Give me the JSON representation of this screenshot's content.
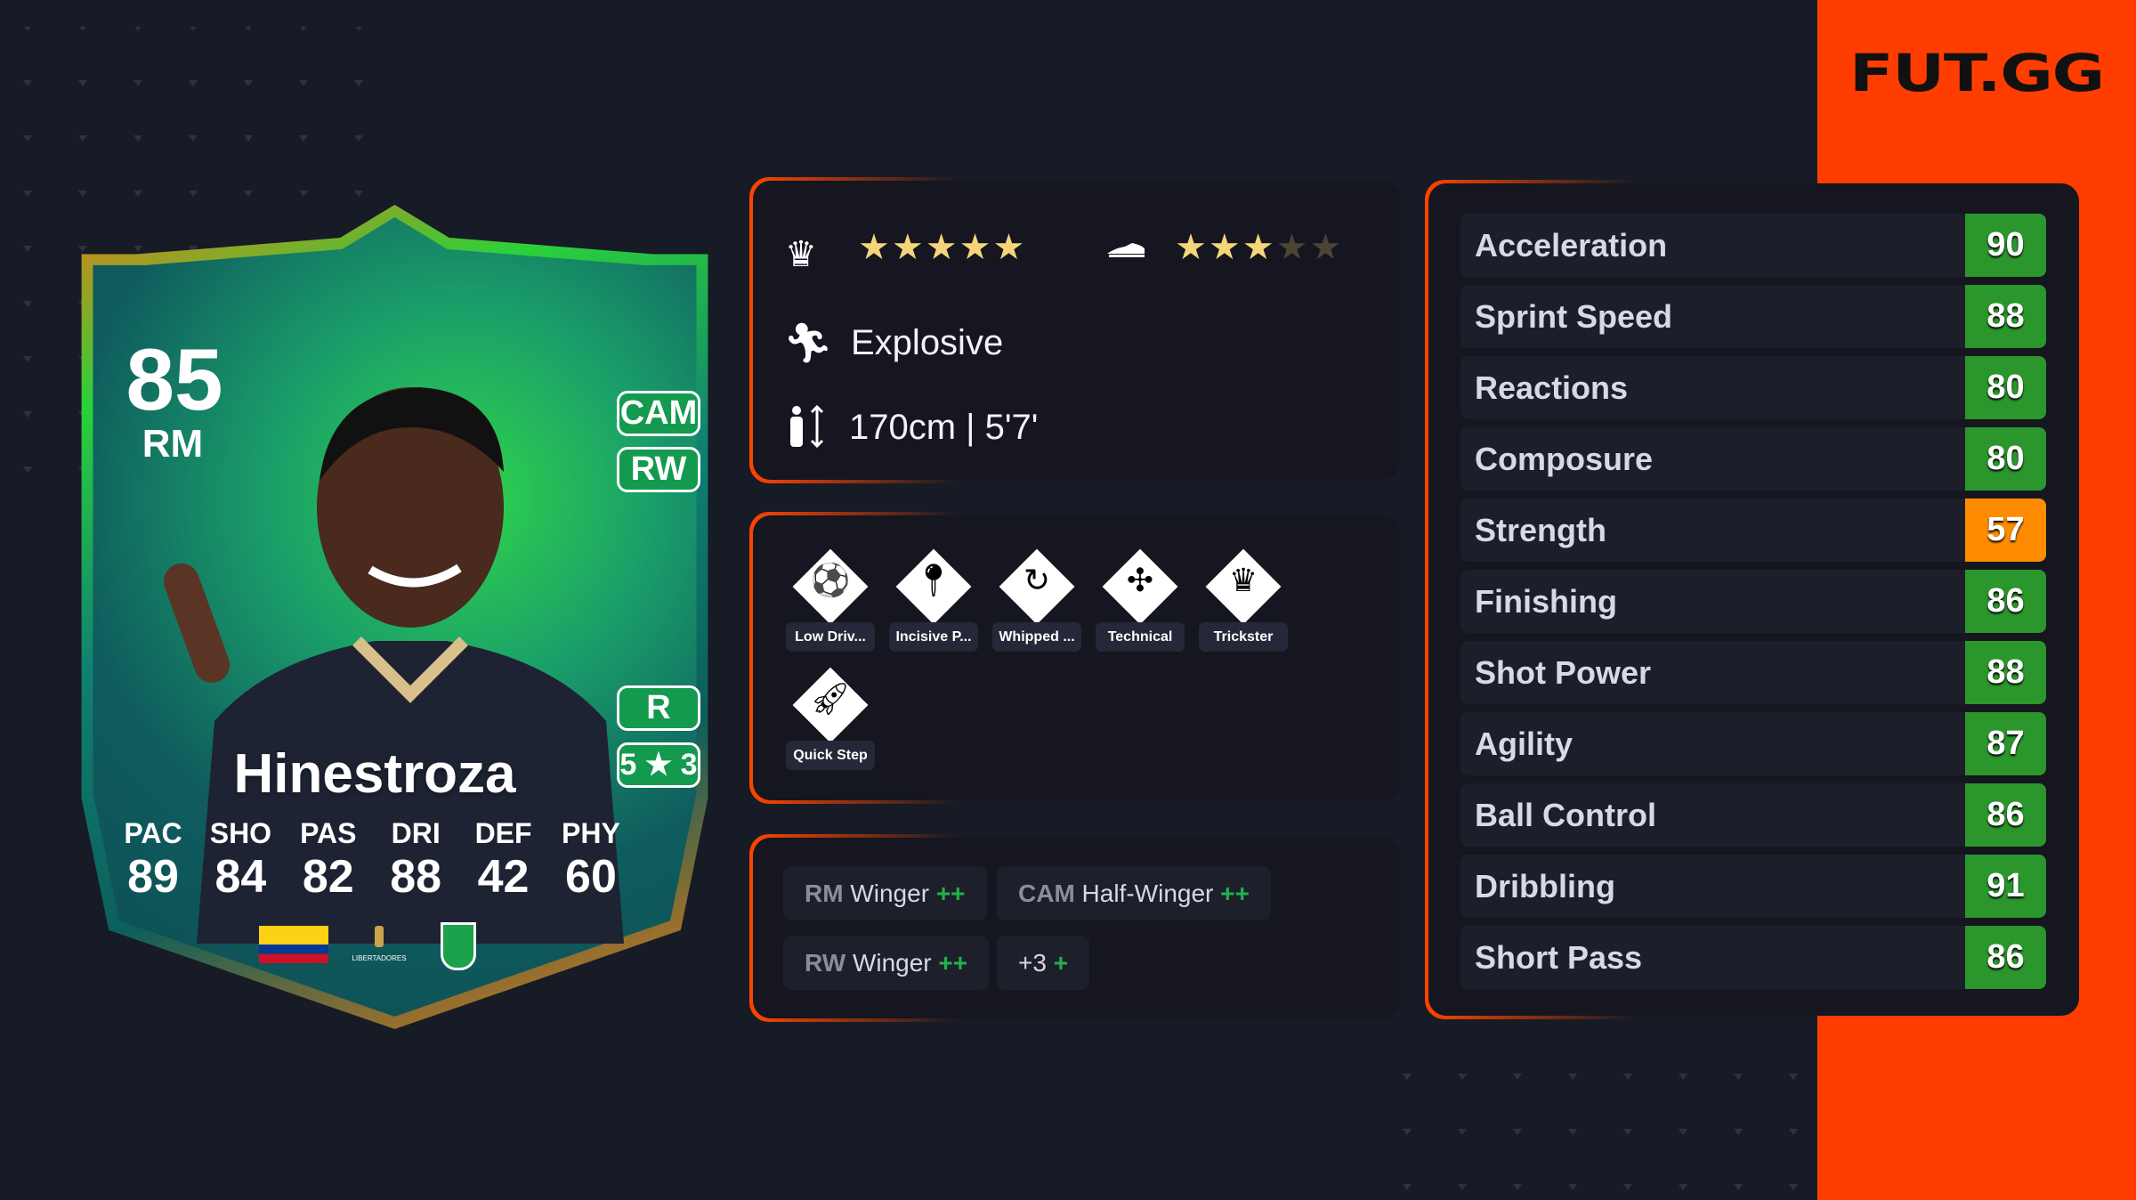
{
  "brand": {
    "logo": "FUT.GG",
    "accent": "#ff3d00"
  },
  "card": {
    "rating": "85",
    "position": "RM",
    "name": "Hinestroza",
    "alt_positions": [
      "CAM",
      "RW"
    ],
    "foot": "R",
    "skill_weak": "5 ★ 3",
    "face_stats": [
      {
        "label": "PAC",
        "value": "89"
      },
      {
        "label": "SHO",
        "value": "84"
      },
      {
        "label": "PAS",
        "value": "82"
      },
      {
        "label": "DRI",
        "value": "88"
      },
      {
        "label": "DEF",
        "value": "42"
      },
      {
        "label": "PHY",
        "value": "60"
      }
    ],
    "nation_flag": "colombia-flag",
    "league_logo": "CONMEBOL LIBERTADORES",
    "club_crest": "atletico-nacional-crest"
  },
  "info": {
    "skill_moves_icon": "jester-hat-icon",
    "skill_moves": 5,
    "weak_foot_icon": "boot-icon",
    "weak_foot": 3,
    "max_stars": 5,
    "accelerate_type": "Explosive",
    "height": "170cm | 5'7'"
  },
  "playstyles": [
    {
      "label": "Low Driv...",
      "icon": "low-driven-shot-icon"
    },
    {
      "label": "Incisive P...",
      "icon": "incisive-pass-icon"
    },
    {
      "label": "Whipped ...",
      "icon": "whipped-pass-icon"
    },
    {
      "label": "Technical",
      "icon": "technical-icon"
    },
    {
      "label": "Trickster",
      "icon": "trickster-icon"
    },
    {
      "label": "Quick Step",
      "icon": "quick-step-icon"
    }
  ],
  "roles": [
    {
      "pos": "RM",
      "role": "Winger",
      "plus": "++"
    },
    {
      "pos": "CAM",
      "role": "Half-Winger",
      "plus": "++"
    },
    {
      "pos": "RW",
      "role": "Winger",
      "plus": "++"
    },
    {
      "pos": "",
      "role": "+3",
      "plus": "+"
    }
  ],
  "stats": [
    {
      "name": "Acceleration",
      "value": "90",
      "color": "#2b962c"
    },
    {
      "name": "Sprint Speed",
      "value": "88",
      "color": "#2b962c"
    },
    {
      "name": "Reactions",
      "value": "80",
      "color": "#2b962c"
    },
    {
      "name": "Composure",
      "value": "80",
      "color": "#2b962c"
    },
    {
      "name": "Strength",
      "value": "57",
      "color": "#ff8c00"
    },
    {
      "name": "Finishing",
      "value": "86",
      "color": "#2b962c"
    },
    {
      "name": "Shot Power",
      "value": "88",
      "color": "#2b962c"
    },
    {
      "name": "Agility",
      "value": "87",
      "color": "#2b962c"
    },
    {
      "name": "Ball Control",
      "value": "86",
      "color": "#2b962c"
    },
    {
      "name": "Dribbling",
      "value": "91",
      "color": "#2b962c"
    },
    {
      "name": "Short Pass",
      "value": "86",
      "color": "#2b962c"
    }
  ]
}
